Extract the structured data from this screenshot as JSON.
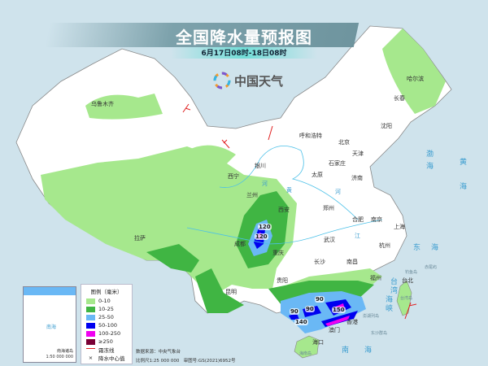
{
  "header": {
    "title": "全国降水量预报图",
    "subtitle": "6月17日08时-18日08时"
  },
  "brand": {
    "name": "中国天气",
    "logo": "china-weather-logo"
  },
  "legend": {
    "title": "图例（毫米）",
    "items": [
      {
        "label": "0-10",
        "color": "#a6e88d"
      },
      {
        "label": "10-25",
        "color": "#40b543"
      },
      {
        "label": "25-50",
        "color": "#6ab8f5"
      },
      {
        "label": "50-100",
        "color": "#0000f0"
      },
      {
        "label": "100-250",
        "color": "#f000f0"
      },
      {
        "label": "≥250",
        "color": "#7a0035"
      }
    ],
    "frost_line": "霜冻线",
    "center_value": "降水中心值"
  },
  "source": {
    "data_source": "数据来源：中央气象台",
    "scale": "比例尺1:25 000 000",
    "approval": "审图号:GS(2021)6952号"
  },
  "inset": {
    "caption": "南海诸岛",
    "scale": "1:50 000 000",
    "sea": "南海"
  },
  "cities": [
    "乌鲁木齐",
    "拉萨",
    "西宁",
    "兰州",
    "成都",
    "重庆",
    "贵阳",
    "昆明",
    "哈尔滨",
    "长春",
    "沈阳",
    "呼和浩特",
    "银川",
    "北京",
    "天津",
    "石家庄",
    "太原",
    "济南",
    "西安",
    "郑州",
    "合肥",
    "南京",
    "上海",
    "武汉",
    "杭州",
    "长沙",
    "南昌",
    "福州",
    "台北",
    "香港",
    "澳门",
    "海口"
  ],
  "seas": {
    "bohai": "渤",
    "bohai2": "海",
    "huanghai": "黄",
    "huanghai2": "海",
    "donghai": "东",
    "donghai2": "海",
    "nanhai": "南",
    "nanhai2": "海",
    "strait": "台",
    "strait2": "湾",
    "strait3": "海",
    "strait4": "峡"
  },
  "islands": [
    "台湾岛",
    "澎湖列岛",
    "东沙群岛",
    "钓鱼岛",
    "赤尾屿",
    "海南岛"
  ],
  "rivers": {
    "huanghe1": "黄",
    "huanghe2": "河",
    "changjiang1": "江",
    "huanghe3": "河"
  },
  "center_values": [
    "120",
    "120",
    "90",
    "90",
    "90",
    "140",
    "150"
  ]
}
